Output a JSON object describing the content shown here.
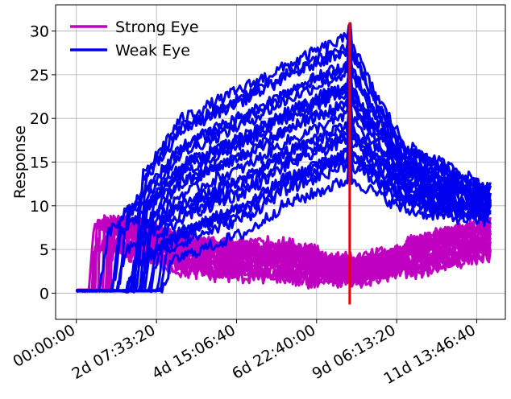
{
  "chart_data": {
    "type": "line",
    "title": "",
    "xlabel": "",
    "ylabel": "Response",
    "x_tick_labels": [
      "00:00:00",
      "2d 07:33:20",
      "4d 15:06:40",
      "6d 22:40:00",
      "9d 06:13:20",
      "11d 13:46:40"
    ],
    "x_tick_values_days": [
      0,
      2.315,
      4.63,
      6.944,
      9.259,
      11.574
    ],
    "y_tick_labels": [
      "0",
      "5",
      "10",
      "15",
      "20",
      "25",
      "30"
    ],
    "y_tick_values": [
      0,
      5,
      10,
      15,
      20,
      25,
      30
    ],
    "xlim_days": [
      -0.6,
      12.4
    ],
    "ylim": [
      -3,
      33
    ],
    "grid": true,
    "legend_position": "top-left",
    "vertical_marker": {
      "x_days": 7.9,
      "y_range": [
        -1.3,
        31
      ],
      "color": "#ee0000"
    },
    "series": [
      {
        "name": "Strong Eye",
        "color": "#c000c0",
        "line_count": 20,
        "onset_days": [
          0.35,
          1.05
        ],
        "values_at_days": [
          [
            0.0,
            0.3
          ],
          [
            0.4,
            0.4
          ],
          [
            0.5,
            6.5
          ],
          [
            1.0,
            6.5
          ],
          [
            2.0,
            6.0
          ],
          [
            3.0,
            4.5
          ],
          [
            4.0,
            4.0
          ],
          [
            5.0,
            3.8
          ],
          [
            6.0,
            3.6
          ],
          [
            7.0,
            3.0
          ],
          [
            7.9,
            2.5
          ],
          [
            8.5,
            2.8
          ],
          [
            9.5,
            4.0
          ],
          [
            10.5,
            5.0
          ],
          [
            11.5,
            6.0
          ],
          [
            12.0,
            6.2
          ]
        ],
        "spread": 2.5
      },
      {
        "name": "Weak Eye",
        "color": "#0000ee",
        "line_count": 22,
        "onset_days": [
          0.4,
          2.6
        ],
        "values_at_days": [
          [
            0.0,
            0.2
          ],
          [
            1.0,
            0.5
          ],
          [
            2.0,
            2.0
          ],
          [
            3.0,
            8.0
          ],
          [
            4.0,
            12.0
          ],
          [
            5.0,
            15.0
          ],
          [
            6.0,
            17.5
          ],
          [
            7.0,
            19.5
          ],
          [
            7.9,
            22.0
          ],
          [
            8.5,
            17.5
          ],
          [
            9.5,
            13.5
          ],
          [
            10.5,
            12.0
          ],
          [
            11.5,
            11.0
          ],
          [
            12.0,
            10.5
          ]
        ],
        "spread_min": [
          0.0,
          0.3,
          0.8,
          3.0,
          4.5,
          6.0,
          9.0,
          10.5,
          12.0,
          11.0,
          9.0,
          8.5,
          8.0,
          8.0
        ],
        "spread_max": [
          0.4,
          9.0,
          14.0,
          20.0,
          22.0,
          24.0,
          26.0,
          28.0,
          29.5,
          24.0,
          17.0,
          15.0,
          13.0,
          12.0
        ]
      }
    ]
  }
}
